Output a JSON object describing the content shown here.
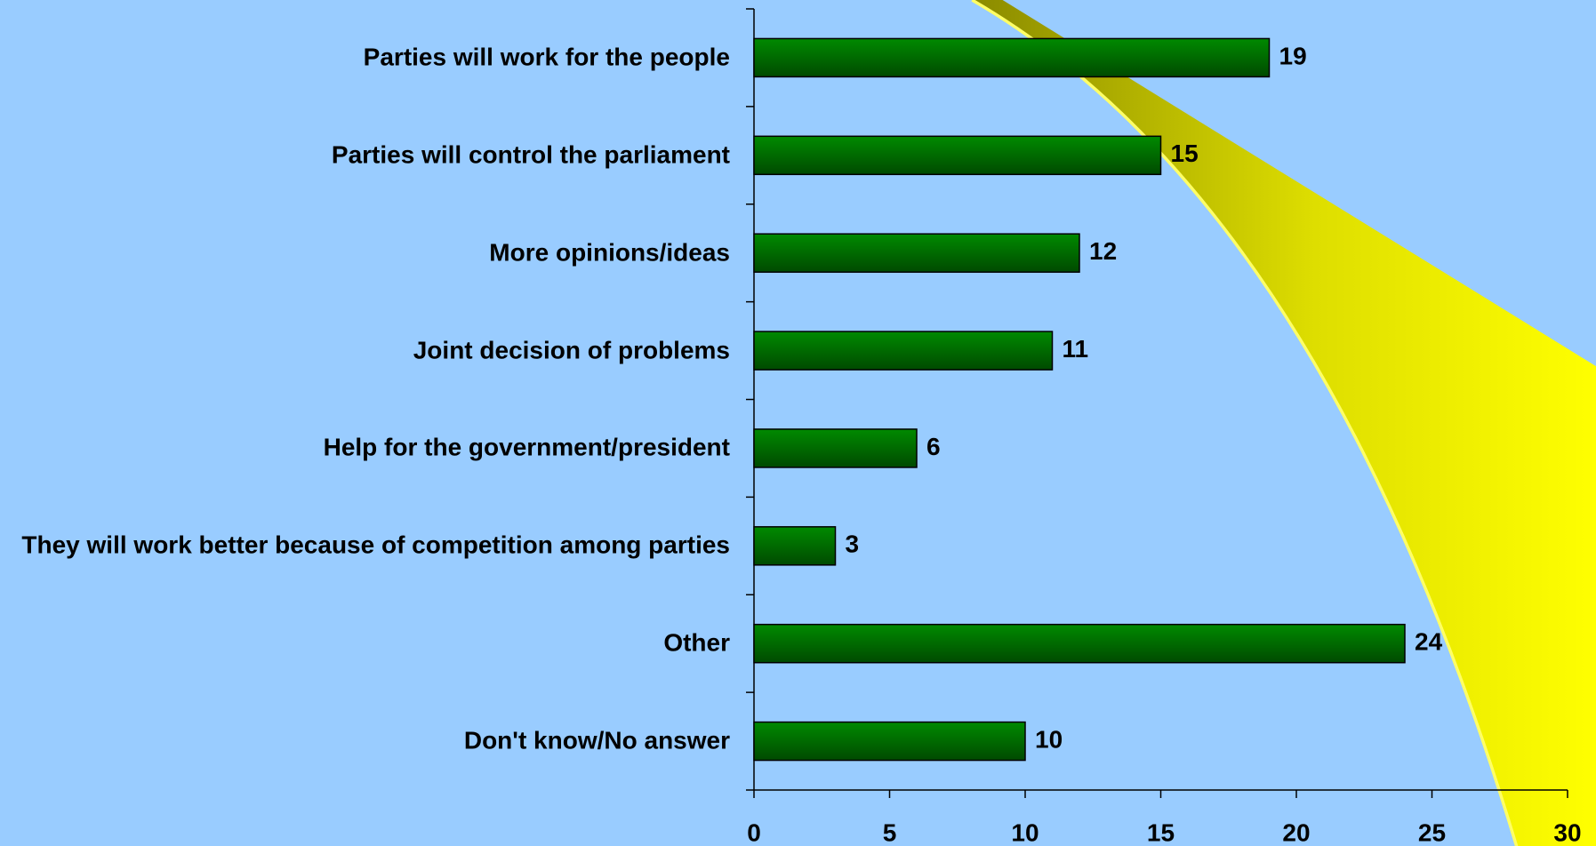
{
  "chart_data": {
    "type": "bar",
    "orientation": "horizontal",
    "categories": [
      "Parties will work for the people",
      "Parties will control the parliament",
      "More opinions/ideas",
      "Joint decision of problems",
      "Help for the government/president",
      "They will work better because of competition among parties",
      "Other",
      "Don't know/No answer"
    ],
    "values": [
      19,
      15,
      12,
      11,
      6,
      3,
      24,
      10
    ],
    "color": "#007a00",
    "xlim": [
      0,
      30
    ],
    "xticks": [
      0,
      5,
      10,
      15,
      20,
      25,
      30
    ],
    "grid": false
  }
}
